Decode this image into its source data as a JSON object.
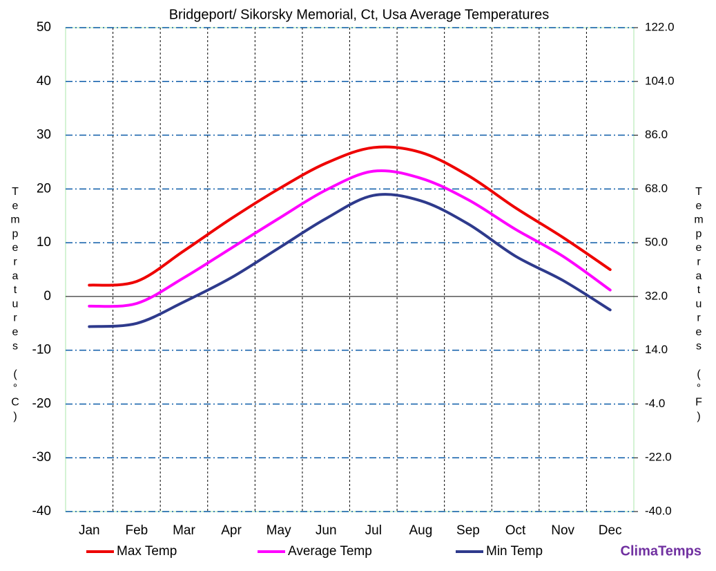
{
  "chart_data": {
    "type": "line",
    "title": "Bridgeport/ Sikorsky Memorial, Ct, Usa Average Temperatures",
    "y_label": "Temperatures (°C)",
    "y2_label": "Temperatures (°F)",
    "categories": [
      "Jan",
      "Feb",
      "Mar",
      "Apr",
      "May",
      "Jun",
      "Jul",
      "Aug",
      "Sep",
      "Oct",
      "Nov",
      "Dec"
    ],
    "series": [
      {
        "name": "Max Temp",
        "color": "#ee0000",
        "values": [
          2.1,
          2.8,
          8.5,
          14.5,
          20,
          24.8,
          27.7,
          26.8,
          22.5,
          16.5,
          11,
          5
        ]
      },
      {
        "name": "Average Temp",
        "color": "#ff00ff",
        "values": [
          -1.8,
          -1.3,
          3.5,
          9,
          14.5,
          19.8,
          23.3,
          22,
          18,
          12.5,
          7.5,
          1.2
        ]
      },
      {
        "name": "Min Temp",
        "color": "#2e3a8c",
        "values": [
          -5.6,
          -5,
          -1,
          3.5,
          9,
          14.5,
          18.8,
          17.8,
          13.5,
          7.5,
          3,
          -2.5
        ]
      }
    ],
    "ylim": [
      -40,
      50
    ],
    "yticks": [
      -40,
      -30,
      -20,
      -10,
      0,
      10,
      20,
      30,
      40,
      50
    ],
    "y2lim": [
      -40,
      122
    ],
    "y2ticks": [
      {
        "value": -40,
        "label": "-40.0"
      },
      {
        "value": -22,
        "label": "-22.0"
      },
      {
        "value": -4,
        "label": "-4.0"
      },
      {
        "value": 14,
        "label": "14.0"
      },
      {
        "value": 32,
        "label": "32.0"
      },
      {
        "value": 50,
        "label": "50.0"
      },
      {
        "value": 68,
        "label": "68.0"
      },
      {
        "value": 86,
        "label": "86.0"
      },
      {
        "value": 104,
        "label": "104.0"
      },
      {
        "value": 122,
        "label": "122.0"
      }
    ],
    "grid": true,
    "legend": "bottom",
    "watermark": "ClimaTemps"
  }
}
